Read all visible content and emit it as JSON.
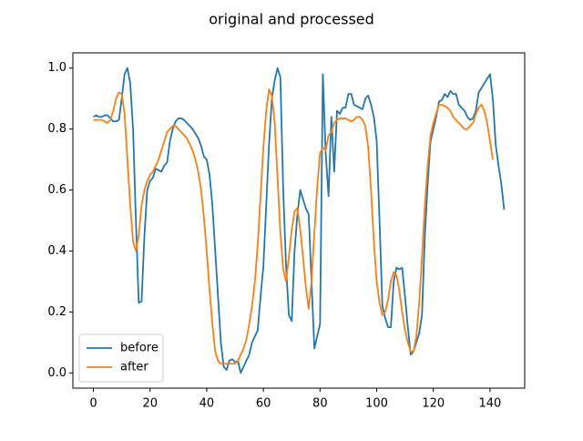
{
  "chart_data": {
    "type": "line",
    "title": "original and processed",
    "series": [
      {
        "name": "before",
        "color": "#1f77b4",
        "values": [
          0.84,
          0.845,
          0.84,
          0.84,
          0.845,
          0.845,
          0.835,
          0.825,
          0.825,
          0.83,
          0.9,
          0.98,
          1.0,
          0.95,
          0.8,
          0.5,
          0.23,
          0.235,
          0.45,
          0.6,
          0.63,
          0.64,
          0.67,
          0.665,
          0.66,
          0.68,
          0.69,
          0.76,
          0.8,
          0.825,
          0.835,
          0.835,
          0.83,
          0.82,
          0.81,
          0.8,
          0.785,
          0.77,
          0.745,
          0.71,
          0.7,
          0.65,
          0.55,
          0.4,
          0.25,
          0.1,
          0.02,
          0.01,
          0.04,
          0.045,
          0.035,
          0.04,
          0.0,
          0.02,
          0.04,
          0.06,
          0.1,
          0.12,
          0.14,
          0.25,
          0.35,
          0.55,
          0.75,
          0.9,
          0.96,
          1.0,
          0.97,
          0.6,
          0.35,
          0.19,
          0.17,
          0.4,
          0.52,
          0.6,
          0.57,
          0.54,
          0.52,
          0.3,
          0.08,
          0.12,
          0.16,
          0.98,
          0.72,
          0.58,
          0.84,
          0.66,
          0.86,
          0.85,
          0.87,
          0.87,
          0.915,
          0.915,
          0.88,
          0.875,
          0.87,
          0.865,
          0.9,
          0.91,
          0.88,
          0.84,
          0.76,
          0.5,
          0.22,
          0.18,
          0.15,
          0.15,
          0.3,
          0.345,
          0.34,
          0.345,
          0.25,
          0.15,
          0.06,
          0.07,
          0.1,
          0.13,
          0.19,
          0.45,
          0.62,
          0.76,
          0.8,
          0.84,
          0.89,
          0.895,
          0.915,
          0.905,
          0.925,
          0.915,
          0.915,
          0.88,
          0.87,
          0.86,
          0.84,
          0.83,
          0.835,
          0.86,
          0.92,
          0.935,
          0.95,
          0.965,
          0.98,
          0.9,
          0.75,
          0.68,
          0.62,
          0.535
        ]
      },
      {
        "name": "after",
        "color": "#ff7f0e",
        "values": [
          0.83,
          0.83,
          0.83,
          0.83,
          0.825,
          0.82,
          0.83,
          0.86,
          0.9,
          0.92,
          0.915,
          0.85,
          0.7,
          0.55,
          0.43,
          0.4,
          0.45,
          0.55,
          0.6,
          0.63,
          0.65,
          0.66,
          0.68,
          0.7,
          0.73,
          0.76,
          0.79,
          0.8,
          0.81,
          0.81,
          0.8,
          0.79,
          0.78,
          0.77,
          0.75,
          0.73,
          0.7,
          0.66,
          0.6,
          0.51,
          0.4,
          0.27,
          0.16,
          0.07,
          0.04,
          0.03,
          0.03,
          0.03,
          0.03,
          0.03,
          0.03,
          0.04,
          0.06,
          0.08,
          0.11,
          0.16,
          0.22,
          0.3,
          0.42,
          0.58,
          0.74,
          0.86,
          0.93,
          0.91,
          0.82,
          0.64,
          0.46,
          0.34,
          0.3,
          0.38,
          0.47,
          0.53,
          0.54,
          0.47,
          0.38,
          0.28,
          0.21,
          0.3,
          0.46,
          0.61,
          0.72,
          0.74,
          0.73,
          0.78,
          0.79,
          0.82,
          0.83,
          0.835,
          0.835,
          0.835,
          0.83,
          0.825,
          0.83,
          0.84,
          0.84,
          0.83,
          0.81,
          0.74,
          0.6,
          0.43,
          0.3,
          0.23,
          0.19,
          0.2,
          0.24,
          0.3,
          0.33,
          0.32,
          0.27,
          0.2,
          0.14,
          0.1,
          0.07,
          0.07,
          0.12,
          0.23,
          0.38,
          0.55,
          0.68,
          0.78,
          0.82,
          0.85,
          0.88,
          0.88,
          0.875,
          0.87,
          0.86,
          0.84,
          0.83,
          0.82,
          0.81,
          0.8,
          0.8,
          0.81,
          0.82,
          0.85,
          0.87,
          0.88,
          0.86,
          0.82,
          0.76,
          0.7
        ]
      }
    ],
    "xlim": [
      -7.25,
      152.25
    ],
    "ylim": [
      -0.05,
      1.05
    ],
    "xticks": [
      0,
      20,
      40,
      60,
      80,
      100,
      120,
      140
    ],
    "yticks": [
      {
        "value": 0,
        "label": "0.0"
      },
      0.2,
      0.4,
      0.6,
      0.8,
      {
        "value": 1,
        "label": "1.0"
      }
    ],
    "legend": "lower left"
  }
}
